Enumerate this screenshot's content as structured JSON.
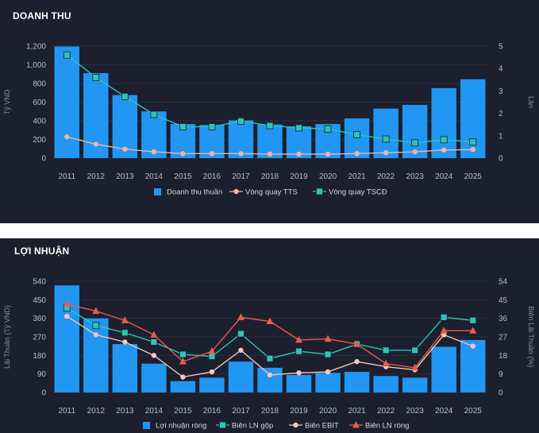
{
  "chart_data": [
    {
      "type": "bar",
      "title": "DOANH THU",
      "categories": [
        "2011",
        "2012",
        "2013",
        "2014",
        "2015",
        "2016",
        "2017",
        "2018",
        "2019",
        "2020",
        "2021",
        "2022",
        "2023",
        "2024",
        "2025"
      ],
      "ylabel": "Tỷ VND",
      "y2label": "Lần",
      "ylim": [
        0,
        1200
      ],
      "y2lim": [
        0,
        5
      ],
      "yticks": [
        "0",
        "200",
        "400",
        "600",
        "800",
        "1,000",
        "1,200"
      ],
      "y2ticks": [
        "0",
        "1",
        "2",
        "3",
        "4",
        "5"
      ],
      "series": [
        {
          "name": "Doanh thu thuần",
          "kind": "bar",
          "axis": "left",
          "color": "#2196f3",
          "values": [
            1195,
            910,
            675,
            500,
            365,
            355,
            405,
            360,
            340,
            365,
            425,
            530,
            570,
            750,
            845
          ]
        },
        {
          "name": "Vòng quay TTS",
          "kind": "line",
          "axis": "right",
          "color": "#f5b3a3",
          "values": [
            0.95,
            0.62,
            0.4,
            0.28,
            0.2,
            0.2,
            0.2,
            0.18,
            0.18,
            0.18,
            0.2,
            0.24,
            0.28,
            0.36,
            0.38
          ]
        },
        {
          "name": "Vòng quay TSCĐ",
          "kind": "line",
          "axis": "right",
          "color": "#2ec4b6",
          "values": [
            4.6,
            3.6,
            2.75,
            1.95,
            1.4,
            1.4,
            1.65,
            1.45,
            1.35,
            1.3,
            1.05,
            0.85,
            0.68,
            0.82,
            0.72
          ]
        }
      ],
      "legend_position": "bottom"
    },
    {
      "type": "bar",
      "title": "LỢI NHUẬN",
      "categories": [
        "2011",
        "2012",
        "2013",
        "2014",
        "2015",
        "2016",
        "2017",
        "2018",
        "2019",
        "2020",
        "2021",
        "2022",
        "2023",
        "2024",
        "2025"
      ],
      "ylabel": "Lãi Thuần (Tỷ VND)",
      "y2label": "Biên Lãi Thuần (%)",
      "ylim": [
        0,
        540
      ],
      "y2lim": [
        0,
        54
      ],
      "yticks": [
        "0",
        "90",
        "180",
        "270",
        "360",
        "450",
        "540"
      ],
      "y2ticks": [
        "0",
        "9",
        "18",
        "27",
        "36",
        "45",
        "54"
      ],
      "series": [
        {
          "name": "Lợi nhuận ròng",
          "kind": "bar",
          "axis": "left",
          "color": "#2196f3",
          "values": [
            520,
            360,
            235,
            140,
            55,
            72,
            150,
            120,
            85,
            95,
            100,
            80,
            72,
            222,
            255
          ]
        },
        {
          "name": "Biên LN gộp",
          "kind": "line",
          "axis": "right",
          "color": "#2ec4b6",
          "values": [
            41,
            32.5,
            29,
            24.5,
            18.5,
            17.5,
            28.5,
            16.5,
            20,
            18.5,
            23.5,
            20.5,
            20.5,
            36.5,
            35
          ]
        },
        {
          "name": "Biên EBIT",
          "kind": "line",
          "axis": "right",
          "color": "#f5c6bd",
          "values": [
            37,
            28,
            24.5,
            18,
            7.5,
            10,
            20.5,
            8.5,
            9.5,
            10,
            15,
            12.5,
            11,
            28,
            22.5
          ]
        },
        {
          "name": "Biên LN ròng",
          "kind": "line",
          "axis": "right",
          "color": "#e85d4a",
          "values": [
            43,
            39.5,
            35,
            28,
            15,
            20,
            36.5,
            34.5,
            25.5,
            26,
            23.5,
            14,
            12,
            30,
            30
          ]
        }
      ],
      "legend_position": "bottom"
    }
  ]
}
